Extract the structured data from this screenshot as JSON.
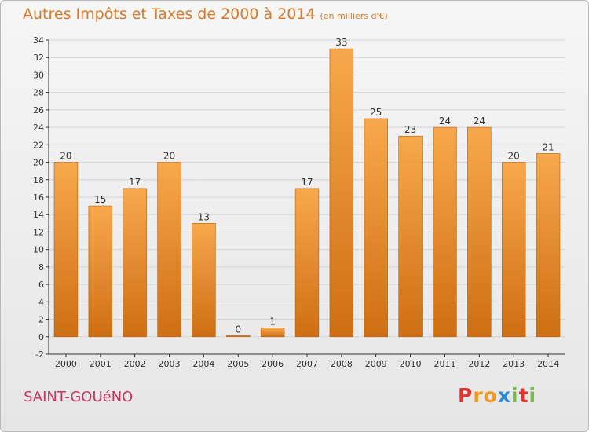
{
  "title": "Autres Impôts et Taxes de 2000 à 2014",
  "title_unit": "(en milliers d'€)",
  "commune": "SAINT-GOUéNO",
  "brand": {
    "letters": [
      "P",
      "r",
      "o",
      "x",
      "i",
      "t",
      "i"
    ],
    "colors": [
      "#e3352b",
      "#f39a1d",
      "#f39a1d",
      "#2a8ad5",
      "#79b84a",
      "#e3352b",
      "#79b84a"
    ]
  },
  "colors": {
    "bar_light": "#f8a84c",
    "bar_dark": "#cf6e12",
    "grid": "#d4d4d4",
    "axis": "#333333",
    "title": "#d97a2a",
    "commune": "#c4365f"
  },
  "chart_data": {
    "type": "bar",
    "title": "Autres Impôts et Taxes de 2000 à 2014",
    "unit": "en milliers d'€",
    "categories": [
      "2000",
      "2001",
      "2002",
      "2003",
      "2004",
      "2005",
      "2006",
      "2007",
      "2008",
      "2009",
      "2010",
      "2011",
      "2012",
      "2013",
      "2014"
    ],
    "values": [
      20,
      15,
      17,
      20,
      13,
      0,
      1,
      17,
      33,
      25,
      23,
      24,
      24,
      20,
      21
    ],
    "ylim": [
      -2,
      34
    ],
    "yticks": [
      -2,
      0,
      2,
      4,
      6,
      8,
      10,
      12,
      14,
      16,
      18,
      20,
      22,
      24,
      26,
      28,
      30,
      32,
      34
    ],
    "grid": true,
    "legend": "none"
  }
}
